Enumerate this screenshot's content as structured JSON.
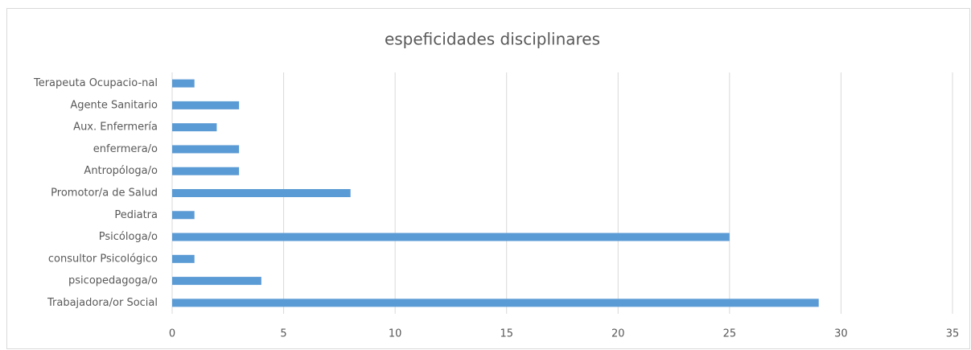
{
  "chart_data": {
    "type": "bar",
    "orientation": "horizontal",
    "title": "espeficidades disciplinares",
    "categories": [
      "Trabajadora/or Social",
      "psicopedagoga/o",
      "consultor Psicológico",
      "Psicóloga/o",
      "Pediatra",
      "Promotor/a de Salud",
      "Antropóloga/o",
      "enfermera/o",
      "Aux. Enfermería",
      "Agente Sanitario",
      "Terapeuta Ocupacio-nal"
    ],
    "values": [
      29,
      4,
      1,
      25,
      1,
      8,
      3,
      3,
      2,
      3,
      1
    ],
    "color": "#5b9bd5",
    "xlim": [
      0,
      35
    ],
    "xticks": [
      0,
      5,
      10,
      15,
      20,
      25,
      30,
      35
    ],
    "grid": true
  }
}
